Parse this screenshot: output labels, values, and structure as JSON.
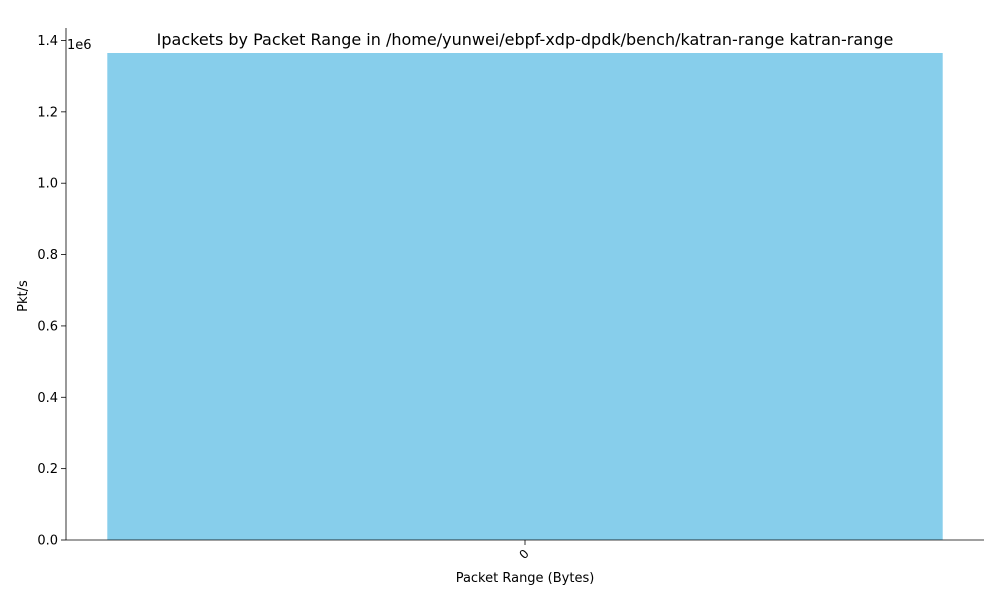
{
  "chart_data": {
    "type": "bar",
    "title": "Ipackets by Packet Range in /home/yunwei/ebpf-xdp-dpdk/bench/katran-range katran-range",
    "xlabel": "Packet Range (Bytes)",
    "ylabel": "Pkt/s",
    "y_scale_label": "1e6",
    "categories": [
      "0"
    ],
    "values": [
      1365000
    ],
    "ylim": [
      0,
      1435000
    ],
    "yticks": [
      0,
      200000,
      400000,
      600000,
      800000,
      1000000,
      1200000,
      1400000
    ],
    "ytick_labels": [
      "0.0",
      "0.2",
      "0.4",
      "0.6",
      "0.8",
      "1.0",
      "1.2",
      "1.4"
    ],
    "xtick_rotation": "45°",
    "bar_color": "#87CEEB",
    "grid": false,
    "legend": "none"
  }
}
